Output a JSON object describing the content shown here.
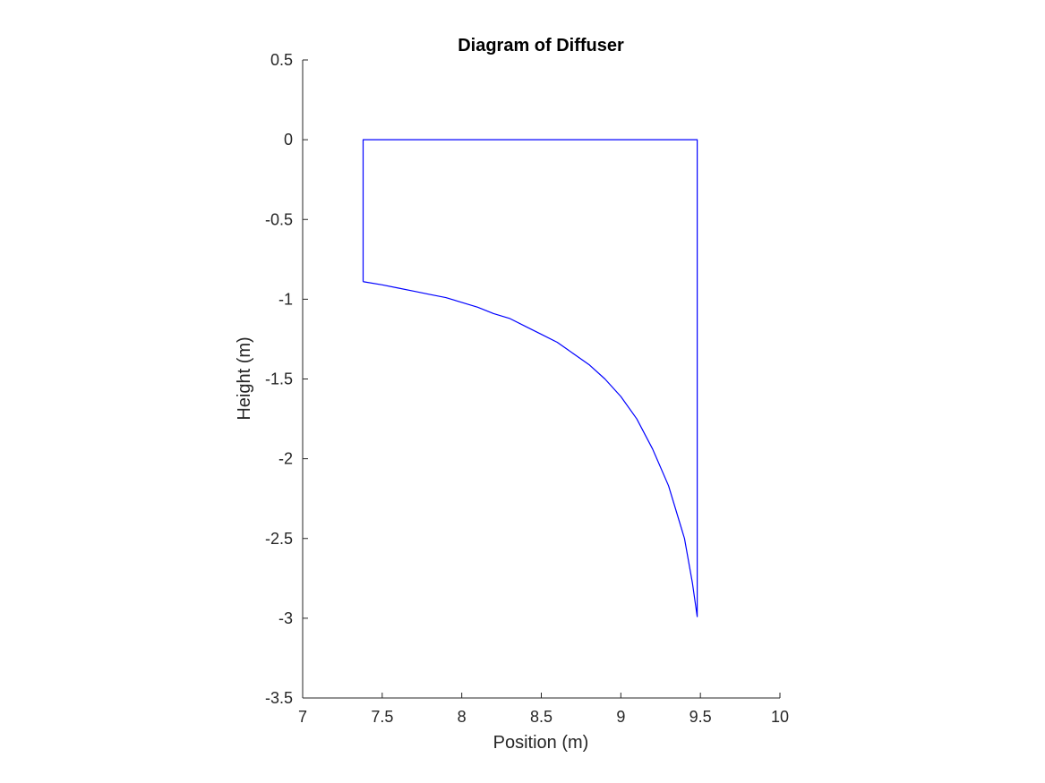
{
  "chart_data": {
    "type": "line",
    "title": "Diagram of Diffuser",
    "xlabel": "Position (m)",
    "ylabel": "Height (m)",
    "xlim": [
      7,
      10
    ],
    "ylim": [
      -3.5,
      0.5
    ],
    "xticks": [
      7,
      7.5,
      8,
      8.5,
      9,
      9.5,
      10
    ],
    "xtick_labels": [
      "7",
      "7.5",
      "8",
      "8.5",
      "9",
      "9.5",
      "10"
    ],
    "yticks": [
      -3.5,
      -3,
      -2.5,
      -2,
      -1.5,
      -1,
      -0.5,
      0,
      0.5
    ],
    "ytick_labels": [
      "-3.5",
      "-3",
      "-2.5",
      "-2",
      "-1.5",
      "-1",
      "-0.5",
      "0",
      "0.5"
    ],
    "grid": false,
    "legend": "none",
    "series": [
      {
        "color": "#0000ff",
        "x": [
          7.38,
          7.38,
          9.48,
          9.48,
          9.45,
          9.4,
          9.3,
          9.2,
          9.1,
          9.0,
          8.9,
          8.8,
          8.7,
          8.6,
          8.5,
          8.4,
          8.3,
          8.2,
          8.1,
          8.0,
          7.9,
          7.8,
          7.7,
          7.6,
          7.5,
          7.38
        ],
        "y": [
          -0.89,
          0,
          0,
          -2.99,
          -2.78,
          -2.5,
          -2.17,
          -1.94,
          -1.75,
          -1.61,
          -1.5,
          -1.41,
          -1.34,
          -1.27,
          -1.22,
          -1.17,
          -1.12,
          -1.09,
          -1.05,
          -1.02,
          -0.99,
          -0.97,
          -0.95,
          -0.93,
          -0.91,
          -0.89
        ]
      }
    ]
  }
}
